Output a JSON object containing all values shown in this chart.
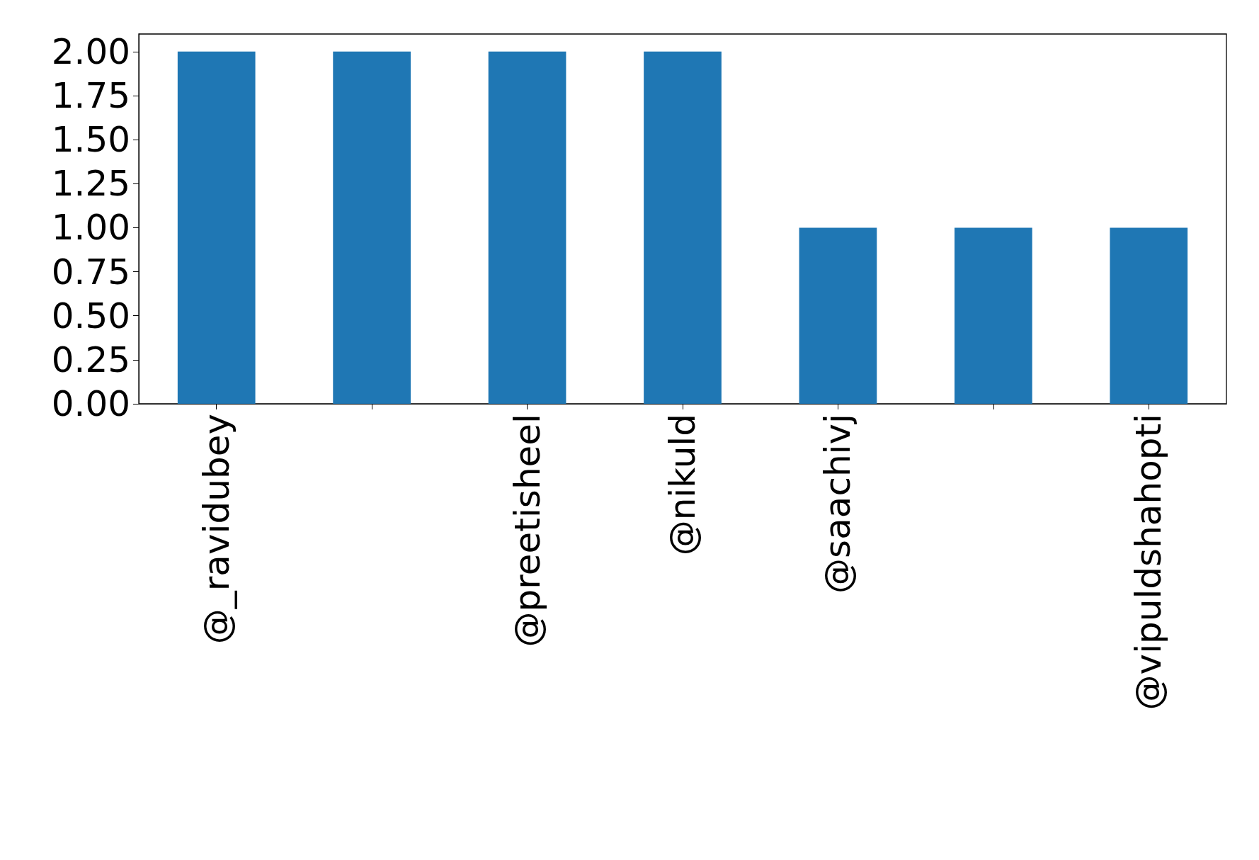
{
  "chart_data": {
    "type": "bar",
    "categories": [
      "@_ravidubey",
      null,
      "@preetisheel",
      "@nikuld",
      "@saachivj",
      null,
      "@vipuldshahopti"
    ],
    "values": [
      2,
      2,
      2,
      2,
      1,
      1,
      1
    ],
    "color": "#1f77b4",
    "ylim": [
      0,
      2.1
    ],
    "yticks": [
      {
        "value": 0,
        "label": "0.00"
      },
      {
        "value": 0.25,
        "label": "0.25"
      },
      {
        "value": 0.5,
        "label": "0.50"
      },
      {
        "value": 0.75,
        "label": "0.75"
      },
      {
        "value": 1,
        "label": "1.00"
      },
      {
        "value": 1.25,
        "label": "1.25"
      },
      {
        "value": 1.5,
        "label": "1.50"
      },
      {
        "value": 1.75,
        "label": "1.75"
      },
      {
        "value": 2,
        "label": "2.00"
      }
    ]
  }
}
